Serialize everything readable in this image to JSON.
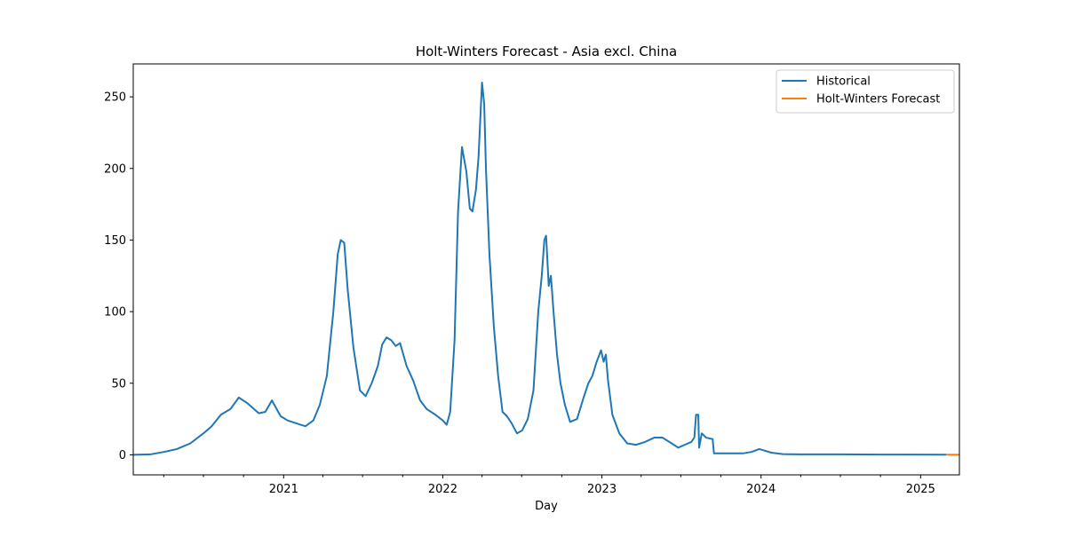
{
  "chart_data": {
    "type": "line",
    "title": "Holt-Winters Forecast - Asia excl. China",
    "xlabel": "Day",
    "ylabel": "",
    "xlim": [
      "2020-01-22",
      "2025-03-31"
    ],
    "ylim": [
      -14,
      273
    ],
    "yticks": [
      0,
      50,
      100,
      150,
      200,
      250
    ],
    "xticks": [
      {
        "date": "2021-01-01",
        "label": "2021"
      },
      {
        "date": "2022-01-01",
        "label": "2022"
      },
      {
        "date": "2023-01-01",
        "label": "2023"
      },
      {
        "date": "2024-01-01",
        "label": "2024"
      },
      {
        "date": "2025-01-01",
        "label": "2025"
      }
    ],
    "legend_position": "upper right",
    "grid": false,
    "series": [
      {
        "name": "Historical",
        "color": "#1f77b4",
        "points": [
          [
            "2020-01-22",
            0
          ],
          [
            "2020-03-01",
            0.3
          ],
          [
            "2020-04-01",
            2
          ],
          [
            "2020-05-01",
            4
          ],
          [
            "2020-06-01",
            8
          ],
          [
            "2020-07-01",
            15
          ],
          [
            "2020-07-20",
            20
          ],
          [
            "2020-08-10",
            28
          ],
          [
            "2020-09-01",
            32
          ],
          [
            "2020-09-20",
            40
          ],
          [
            "2020-10-10",
            36
          ],
          [
            "2020-11-05",
            29
          ],
          [
            "2020-11-20",
            30
          ],
          [
            "2020-12-05",
            38
          ],
          [
            "2020-12-25",
            27
          ],
          [
            "2021-01-10",
            24
          ],
          [
            "2021-01-30",
            22
          ],
          [
            "2021-02-20",
            20
          ],
          [
            "2021-03-10",
            24
          ],
          [
            "2021-03-25",
            35
          ],
          [
            "2021-04-10",
            55
          ],
          [
            "2021-04-25",
            100
          ],
          [
            "2021-05-05",
            140
          ],
          [
            "2021-05-12",
            150
          ],
          [
            "2021-05-20",
            148
          ],
          [
            "2021-05-28",
            115
          ],
          [
            "2021-06-10",
            75
          ],
          [
            "2021-06-25",
            45
          ],
          [
            "2021-07-08",
            41
          ],
          [
            "2021-07-22",
            50
          ],
          [
            "2021-08-05",
            62
          ],
          [
            "2021-08-15",
            77
          ],
          [
            "2021-08-25",
            82
          ],
          [
            "2021-09-05",
            80
          ],
          [
            "2021-09-15",
            76
          ],
          [
            "2021-09-25",
            78
          ],
          [
            "2021-10-10",
            62
          ],
          [
            "2021-10-25",
            52
          ],
          [
            "2021-11-10",
            38
          ],
          [
            "2021-11-25",
            32
          ],
          [
            "2021-12-15",
            28
          ],
          [
            "2022-01-01",
            24
          ],
          [
            "2022-01-10",
            21
          ],
          [
            "2022-01-18",
            30
          ],
          [
            "2022-01-28",
            80
          ],
          [
            "2022-02-05",
            170
          ],
          [
            "2022-02-14",
            215
          ],
          [
            "2022-02-24",
            198
          ],
          [
            "2022-03-04",
            172
          ],
          [
            "2022-03-10",
            170
          ],
          [
            "2022-03-18",
            185
          ],
          [
            "2022-03-24",
            208
          ],
          [
            "2022-04-01",
            260
          ],
          [
            "2022-04-06",
            245
          ],
          [
            "2022-04-10",
            200
          ],
          [
            "2022-04-18",
            140
          ],
          [
            "2022-04-28",
            90
          ],
          [
            "2022-05-08",
            55
          ],
          [
            "2022-05-18",
            30
          ],
          [
            "2022-05-28",
            27
          ],
          [
            "2022-06-08",
            22
          ],
          [
            "2022-06-20",
            15
          ],
          [
            "2022-07-02",
            17
          ],
          [
            "2022-07-15",
            25
          ],
          [
            "2022-07-28",
            45
          ],
          [
            "2022-08-08",
            100
          ],
          [
            "2022-08-16",
            125
          ],
          [
            "2022-08-22",
            150
          ],
          [
            "2022-08-26",
            153
          ],
          [
            "2022-09-01",
            118
          ],
          [
            "2022-09-06",
            125
          ],
          [
            "2022-09-12",
            100
          ],
          [
            "2022-09-20",
            70
          ],
          [
            "2022-09-28",
            50
          ],
          [
            "2022-10-08",
            35
          ],
          [
            "2022-10-20",
            23
          ],
          [
            "2022-11-05",
            25
          ],
          [
            "2022-11-20",
            40
          ],
          [
            "2022-12-01",
            50
          ],
          [
            "2022-12-10",
            55
          ],
          [
            "2022-12-20",
            65
          ],
          [
            "2022-12-30",
            73
          ],
          [
            "2023-01-05",
            65
          ],
          [
            "2023-01-10",
            70
          ],
          [
            "2023-01-15",
            52
          ],
          [
            "2023-01-25",
            28
          ],
          [
            "2023-02-10",
            15
          ],
          [
            "2023-02-28",
            8
          ],
          [
            "2023-03-20",
            7
          ],
          [
            "2023-04-10",
            9
          ],
          [
            "2023-05-01",
            12
          ],
          [
            "2023-05-20",
            12
          ],
          [
            "2023-06-10",
            8
          ],
          [
            "2023-06-25",
            5
          ],
          [
            "2023-07-10",
            7
          ],
          [
            "2023-07-25",
            9
          ],
          [
            "2023-08-01",
            12
          ],
          [
            "2023-08-05",
            28
          ],
          [
            "2023-08-10",
            28
          ],
          [
            "2023-08-12",
            5
          ],
          [
            "2023-08-18",
            15
          ],
          [
            "2023-08-28",
            12
          ],
          [
            "2023-09-12",
            11
          ],
          [
            "2023-09-15",
            1
          ],
          [
            "2023-10-15",
            1
          ],
          [
            "2023-11-20",
            1
          ],
          [
            "2023-12-10",
            2
          ],
          [
            "2023-12-28",
            4
          ],
          [
            "2024-01-25",
            1.5
          ],
          [
            "2024-02-20",
            0.5
          ],
          [
            "2024-04-01",
            0.3
          ],
          [
            "2024-07-01",
            0.3
          ],
          [
            "2024-10-01",
            0.2
          ],
          [
            "2025-03-01",
            0.1
          ]
        ]
      },
      {
        "name": "Holt-Winters Forecast",
        "color": "#ff7f0e",
        "points": [
          [
            "2025-03-01",
            0.1
          ],
          [
            "2025-03-31",
            0.1
          ]
        ]
      }
    ]
  }
}
